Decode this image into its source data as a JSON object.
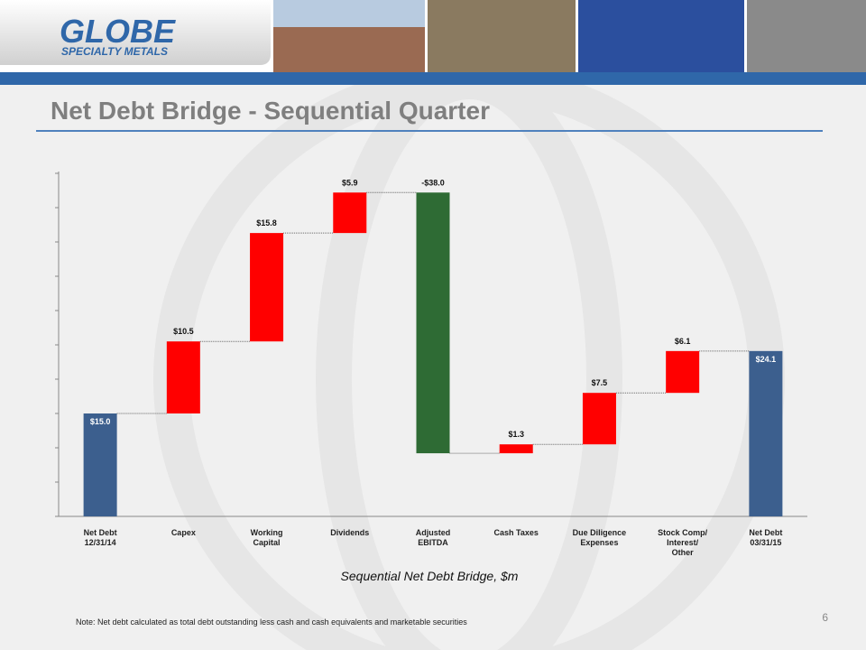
{
  "header": {
    "logo_name": "GLOBE",
    "logo_sub": "SPECIALTY METALS"
  },
  "title": "Net Debt Bridge - Sequential Quarter",
  "chart_data": {
    "type": "waterfall",
    "categories": [
      "Net Debt\n12/31/14",
      "Capex",
      "Working\nCapital",
      "Dividends",
      "Adjusted\nEBITDA",
      "Cash Taxes",
      "Due Diligence\nExpenses",
      "Stock Comp/\nInterest/\nOther",
      "Net Debt\n03/31/15"
    ],
    "values": [
      15.0,
      10.5,
      15.8,
      5.9,
      -38.0,
      1.3,
      7.5,
      6.1,
      24.1
    ],
    "value_labels": [
      "$15.0",
      "$10.5",
      "$15.8",
      "$5.9",
      "-$38.0",
      "$1.3",
      "$7.5",
      "$6.1",
      "$24.1"
    ],
    "measure": [
      "total",
      "relative",
      "relative",
      "relative",
      "relative",
      "relative",
      "relative",
      "relative",
      "total"
    ],
    "colors": [
      "#3c5f8e",
      "#ff0000",
      "#ff0000",
      "#ff0000",
      "#2e6b34",
      "#ff0000",
      "#ff0000",
      "#ff0000",
      "#3c5f8e"
    ],
    "ylim": [
      0,
      50
    ],
    "yticks": [
      0,
      5,
      10,
      15,
      20,
      25,
      30,
      35,
      40,
      45,
      50
    ],
    "caption": "Sequential Net Debt Bridge, $m"
  },
  "footnote": "Note: Net debt calculated as total debt outstanding less cash and cash equivalents and marketable securities",
  "page_number": "6"
}
